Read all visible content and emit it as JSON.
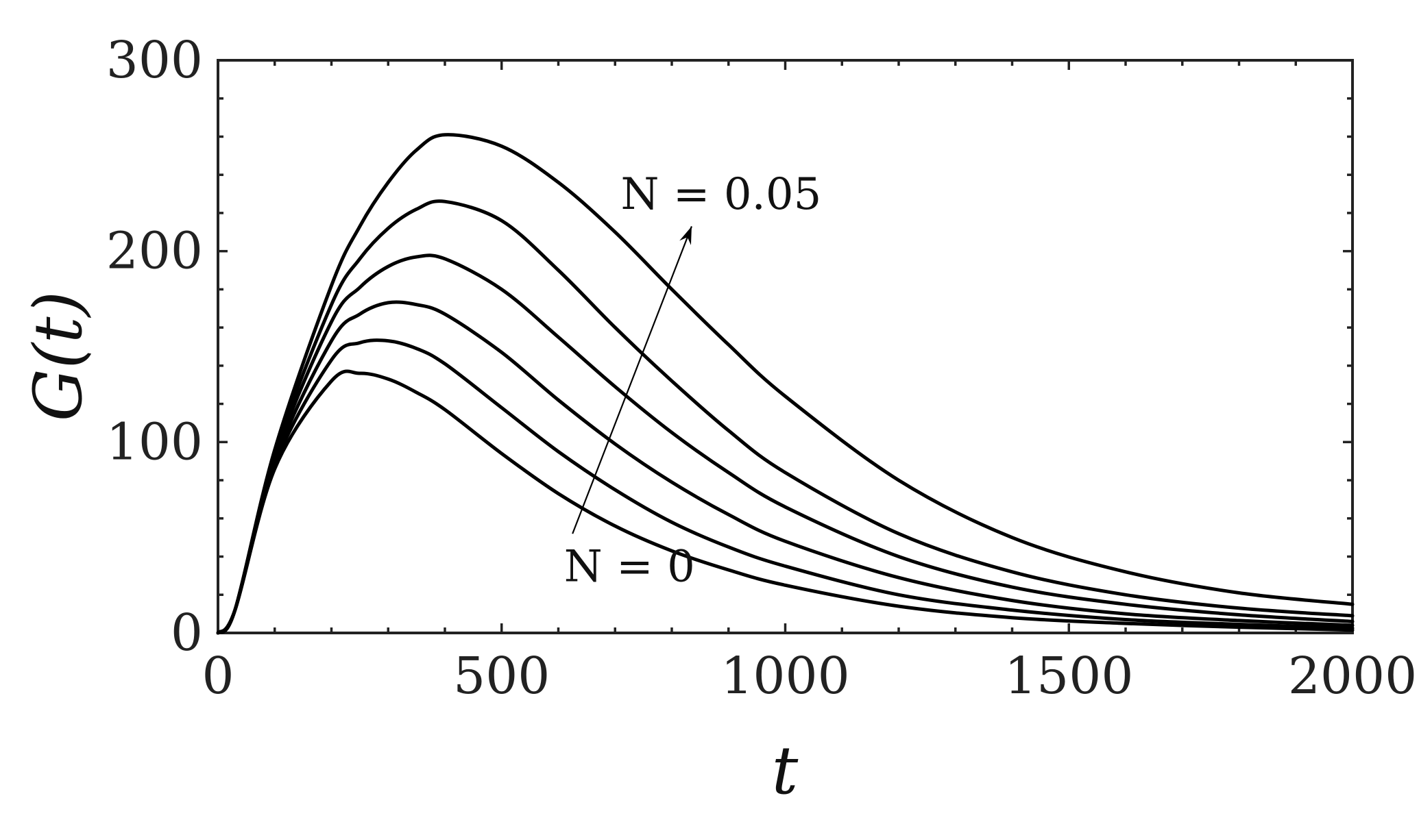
{
  "chart_data": {
    "type": "line",
    "xlabel": "t",
    "ylabel": "G(t)",
    "xlim": [
      0,
      2000
    ],
    "ylim": [
      0,
      300
    ],
    "x_major_ticks": [
      0,
      500,
      1000,
      1500,
      2000
    ],
    "y_major_ticks": [
      0,
      100,
      200,
      300
    ],
    "x_tick_labels": [
      "0",
      "500",
      "1000",
      "1500",
      "2000"
    ],
    "y_tick_labels": [
      "0",
      "100",
      "200",
      "300"
    ],
    "x_minor_step": 100,
    "y_minor_step": 20,
    "grid": false,
    "line_color": "#000000",
    "x": [
      0,
      30,
      100,
      200,
      250,
      300,
      350,
      400,
      500,
      600,
      700,
      800,
      900,
      1000,
      1200,
      1400,
      1600,
      1800,
      2000
    ],
    "series": [
      {
        "values": [
          0,
          12,
          86,
          132,
          136,
          133,
          126,
          117,
          94,
          73,
          56,
          43,
          33,
          25,
          14,
          8,
          5,
          3,
          1.5
        ]
      },
      {
        "values": [
          0,
          12,
          88,
          143,
          152,
          153,
          149,
          141,
          118,
          95,
          75,
          58,
          45,
          35,
          20,
          12,
          7,
          4.5,
          2.5
        ]
      },
      {
        "values": [
          0,
          12,
          90,
          153,
          167,
          173,
          172,
          167,
          147,
          122,
          99,
          79,
          62,
          48,
          29,
          17,
          10,
          6.5,
          4
        ]
      },
      {
        "values": [
          0,
          12,
          92,
          163,
          181,
          192,
          197,
          196,
          180,
          155,
          129,
          105,
          84,
          66,
          40,
          24,
          15,
          9.5,
          6
        ]
      },
      {
        "values": [
          0,
          12,
          94,
          172,
          196,
          212,
          222,
          226,
          216,
          190,
          160,
          132,
          106,
          84,
          52,
          32,
          20,
          13,
          9
        ]
      },
      {
        "values": [
          0,
          12,
          96,
          182,
          213,
          236,
          253,
          261,
          255,
          236,
          210,
          180,
          151,
          124,
          80,
          50,
          32,
          21,
          15
        ]
      }
    ],
    "annotations": [
      {
        "text": "N = 0",
        "x": 610,
        "y": 35
      },
      {
        "text": "N = 0.05",
        "x": 710,
        "y": 230
      }
    ],
    "arrow": {
      "from": [
        625,
        52
      ],
      "to": [
        835,
        213
      ]
    }
  }
}
